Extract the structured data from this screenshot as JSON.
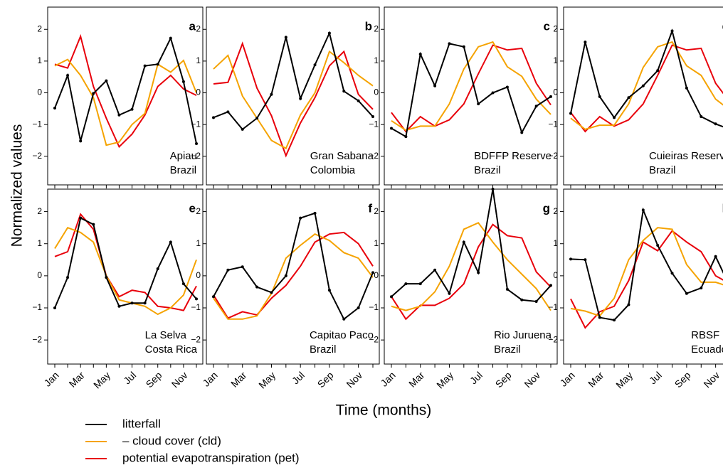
{
  "ylabel": "Normalized values",
  "xlabel": "Time (months)",
  "legend": [
    {
      "name": "litterfall",
      "color": "#000000"
    },
    {
      "name": "– cloud cover (cld)",
      "color": "#f5a300"
    },
    {
      "name": "potential evapotranspiration (pet)",
      "color": "#e8000b"
    }
  ],
  "chart_data": [
    {
      "type": "line",
      "label": "a",
      "annotation": [
        "Apiau",
        "Brazil"
      ],
      "ylim": [
        -2.9,
        2.7
      ],
      "yticks": [
        {
          "value": -2,
          "label": "−2"
        },
        {
          "value": -1,
          "label": "−1"
        },
        0,
        1,
        2
      ],
      "series": [
        {
          "values": [
            -0.48,
            0.55,
            -1.52,
            -0.02,
            0.38,
            -0.7,
            -0.52,
            0.85,
            0.9,
            1.72,
            0.35,
            -1.6
          ]
        },
        {
          "values": [
            0.85,
            1.05,
            0.55,
            -0.15,
            -1.65,
            -1.55,
            -1.0,
            -0.65,
            0.9,
            0.65,
            1.02,
            0.0
          ]
        },
        {
          "values": [
            0.9,
            0.78,
            1.78,
            0.2,
            -0.8,
            -1.7,
            -1.3,
            -0.7,
            0.2,
            0.55,
            0.12,
            -0.08
          ]
        }
      ]
    },
    {
      "type": "line",
      "label": "b",
      "annotation": [
        "Gran Sabana",
        "Colombia"
      ],
      "ylim": [
        -2.9,
        2.7
      ],
      "yticks": [
        {
          "value": -2,
          "label": "−2"
        },
        {
          "value": -1,
          "label": "−1"
        },
        0,
        1,
        2
      ],
      "series": [
        {
          "values": [
            -0.78,
            -0.6,
            -1.15,
            -0.8,
            -0.05,
            1.75,
            -0.18,
            0.88,
            1.88,
            0.05,
            -0.25,
            -0.75
          ]
        },
        {
          "values": [
            0.75,
            1.18,
            -0.1,
            -0.8,
            -1.5,
            -1.75,
            -0.7,
            0.0,
            1.3,
            0.95,
            0.55,
            0.22
          ]
        },
        {
          "values": [
            0.28,
            0.33,
            1.55,
            0.15,
            -0.72,
            -1.98,
            -0.95,
            -0.15,
            0.85,
            1.3,
            -0.05,
            -0.52
          ]
        }
      ]
    },
    {
      "type": "line",
      "label": "c",
      "annotation": [
        "BDFFP Reserve",
        "Brazil"
      ],
      "ylim": [
        -2.9,
        2.7
      ],
      "yticks": [
        {
          "value": -2,
          "label": "−2"
        },
        {
          "value": -1,
          "label": "−1"
        },
        0,
        1,
        2
      ],
      "series": [
        {
          "values": [
            -1.12,
            -1.38,
            1.22,
            0.22,
            1.55,
            1.45,
            -0.35,
            0.0,
            0.18,
            -1.25,
            -0.42,
            -0.12
          ]
        },
        {
          "values": [
            -0.88,
            -1.18,
            -1.05,
            -1.05,
            -0.35,
            0.75,
            1.45,
            1.6,
            0.82,
            0.52,
            -0.2,
            -0.68
          ]
        },
        {
          "values": [
            -0.62,
            -1.22,
            -0.75,
            -1.05,
            -0.85,
            -0.35,
            0.6,
            1.5,
            1.35,
            1.4,
            0.3,
            -0.38
          ]
        }
      ]
    },
    {
      "type": "line",
      "label": "d",
      "annotation": [
        "Cuieiras Reserve",
        "Brazil"
      ],
      "ylim": [
        -2.9,
        2.7
      ],
      "yticks": [
        {
          "value": -2,
          "label": "−2"
        },
        {
          "value": -1,
          "label": "−1"
        },
        0,
        1,
        2
      ],
      "series": [
        {
          "values": [
            -0.65,
            1.6,
            -0.12,
            -0.78,
            -0.15,
            0.22,
            0.7,
            1.95,
            0.15,
            -0.75,
            -0.98,
            -1.15
          ]
        },
        {
          "values": [
            -0.8,
            -1.15,
            -1.02,
            -1.02,
            -0.35,
            0.8,
            1.45,
            1.6,
            0.85,
            0.55,
            -0.2,
            -0.55
          ]
        },
        {
          "values": [
            -0.62,
            -1.22,
            -0.75,
            -1.05,
            -0.85,
            -0.35,
            0.55,
            1.5,
            1.35,
            1.4,
            0.3,
            -0.3
          ]
        }
      ]
    },
    {
      "type": "line",
      "label": "e",
      "annotation": [
        "La Selva",
        "Costa Rica"
      ],
      "ylim": [
        -2.75,
        2.7
      ],
      "yticks": [
        {
          "value": -2,
          "label": "−2"
        },
        {
          "value": -1,
          "label": "−1"
        },
        0,
        1,
        2
      ],
      "categories": [
        "Jan",
        null,
        "Mar",
        null,
        "May",
        null,
        "Jul",
        null,
        "Sep",
        null,
        "Nov",
        null
      ],
      "series": [
        {
          "values": [
            -1.0,
            -0.05,
            1.8,
            1.6,
            -0.05,
            -0.95,
            -0.85,
            -0.85,
            0.22,
            1.05,
            -0.25,
            -0.72
          ]
        },
        {
          "values": [
            0.85,
            1.5,
            1.35,
            1.05,
            0.0,
            -0.75,
            -0.85,
            -0.95,
            -1.2,
            -1.0,
            -0.6,
            0.5
          ]
        },
        {
          "values": [
            0.6,
            0.75,
            1.92,
            1.45,
            0.0,
            -0.65,
            -0.45,
            -0.52,
            -0.95,
            -1.0,
            -1.08,
            -0.32
          ]
        }
      ]
    },
    {
      "type": "line",
      "label": "f",
      "annotation": [
        "Capitao Paco",
        "Brazil"
      ],
      "ylim": [
        -2.75,
        2.7
      ],
      "yticks": [
        {
          "value": -2,
          "label": "−2"
        },
        {
          "value": -1,
          "label": "−1"
        },
        0,
        1,
        2
      ],
      "categories": [
        "Jan",
        null,
        "Mar",
        null,
        "May",
        null,
        "Jul",
        null,
        "Sep",
        null,
        "Nov",
        null
      ],
      "series": [
        {
          "values": [
            -0.65,
            0.18,
            0.28,
            -0.35,
            -0.52,
            0.0,
            1.8,
            1.95,
            -0.45,
            -1.35,
            -1.0,
            0.1
          ]
        },
        {
          "values": [
            -0.7,
            -1.35,
            -1.35,
            -1.25,
            -0.55,
            0.55,
            0.95,
            1.3,
            1.1,
            0.72,
            0.55,
            -0.05
          ]
        },
        {
          "values": [
            -0.6,
            -1.32,
            -1.12,
            -1.22,
            -0.7,
            -0.3,
            0.3,
            1.05,
            1.3,
            1.35,
            1.0,
            0.3
          ]
        }
      ]
    },
    {
      "type": "line",
      "label": "g",
      "annotation": [
        "Rio Juruena",
        "Brazil"
      ],
      "ylim": [
        -2.75,
        2.7
      ],
      "yticks": [
        {
          "value": -2,
          "label": "−2"
        },
        {
          "value": -1,
          "label": "−1"
        },
        0,
        1,
        2
      ],
      "categories": [
        "Jan",
        null,
        "Mar",
        null,
        "May",
        null,
        "Jul",
        null,
        "Sep",
        null,
        "Nov",
        null
      ],
      "series": [
        {
          "values": [
            -0.65,
            -0.25,
            -0.25,
            0.18,
            -0.55,
            1.05,
            0.1,
            2.7,
            -0.42,
            -0.75,
            -0.8,
            -0.3
          ]
        },
        {
          "values": [
            -0.95,
            -1.08,
            -0.95,
            -0.5,
            0.3,
            1.45,
            1.65,
            1.05,
            0.5,
            0.05,
            -0.4,
            -1.08
          ]
        },
        {
          "values": [
            -0.65,
            -1.35,
            -0.92,
            -0.92,
            -0.7,
            -0.25,
            0.9,
            1.6,
            1.25,
            1.18,
            0.12,
            -0.35
          ]
        }
      ]
    },
    {
      "type": "line",
      "label": "h",
      "annotation": [
        "RBSF",
        "Ecuador"
      ],
      "ylim": [
        -2.75,
        2.7
      ],
      "yticks": [
        {
          "value": -2,
          "label": "−2"
        },
        {
          "value": -1,
          "label": "−1"
        },
        0,
        1,
        2
      ],
      "categories": [
        "Jan",
        null,
        "Mar",
        null,
        "May",
        null,
        "Jul",
        null,
        "Sep",
        null,
        "Nov",
        null
      ],
      "series": [
        {
          "values": [
            0.52,
            0.5,
            -1.3,
            -1.38,
            -0.9,
            2.05,
            0.95,
            0.08,
            -0.55,
            -0.38,
            0.6,
            -0.35
          ]
        },
        {
          "values": [
            -1.02,
            -1.1,
            -1.25,
            -0.7,
            0.5,
            1.1,
            1.5,
            1.45,
            0.35,
            -0.2,
            -0.2,
            -0.35
          ]
        },
        {
          "values": [
            -0.72,
            -1.62,
            -1.12,
            -0.95,
            -0.15,
            1.05,
            0.78,
            1.4,
            1.05,
            0.75,
            0.0,
            -0.25
          ]
        }
      ]
    }
  ]
}
